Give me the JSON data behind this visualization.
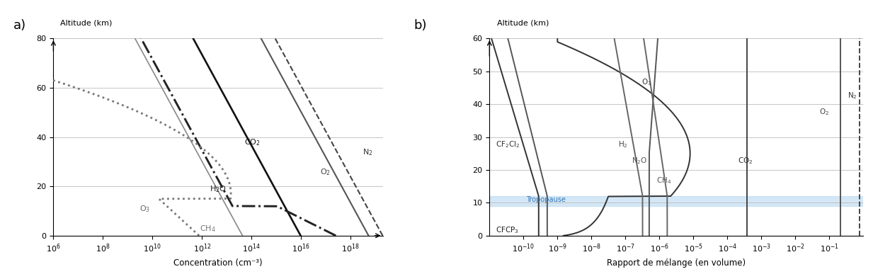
{
  "panel_a": {
    "xlabel": "Concentration (cm⁻³)",
    "ylabel": "Altitude (km)",
    "xlim": [
      1000000.0,
      2e+19
    ],
    "ylim": [
      0,
      80
    ],
    "yticks": [
      0,
      20,
      40,
      60,
      80
    ],
    "grid_color": "#bbbbbb"
  },
  "panel_b": {
    "xlabel": "Rapport de mélange (en volume)",
    "ylabel": "Altitude (km)",
    "xlim": [
      1e-11,
      1.0
    ],
    "ylim": [
      0,
      60
    ],
    "yticks": [
      0,
      10,
      20,
      30,
      40,
      50,
      60
    ],
    "tropopause": [
      9,
      12
    ],
    "tropopause_color": "#b8d8f0",
    "grid_color": "#bbbbbb"
  }
}
